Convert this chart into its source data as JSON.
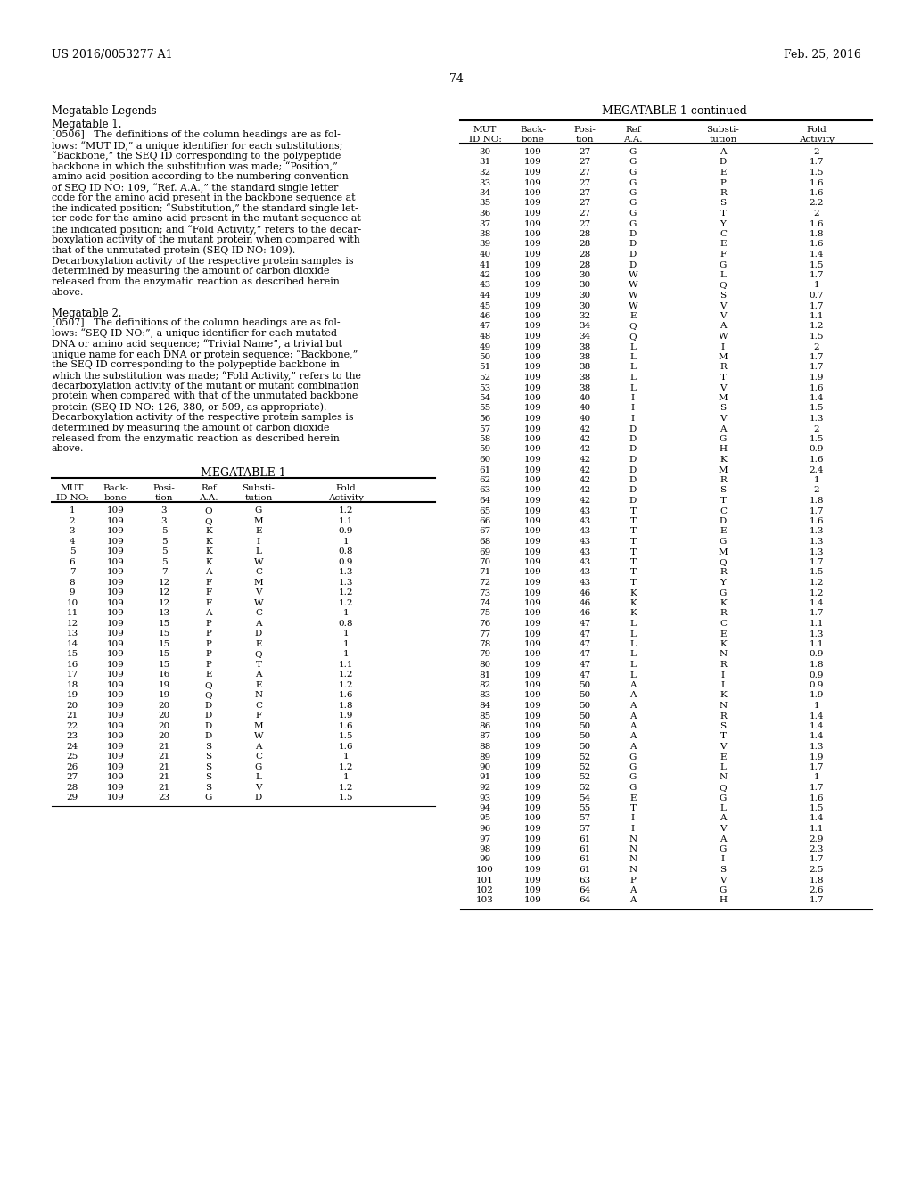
{
  "header_left": "US 2016/0053277 A1",
  "header_right": "Feb. 25, 2016",
  "page_number": "74",
  "table1_headers": [
    "MUT\nID NO:",
    "Back-\nbone",
    "Posi-\ntion",
    "Ref\nA.A.",
    "Substi-\ntution",
    "Fold\nActivity"
  ],
  "table1_data": [
    [
      1,
      109,
      3,
      "Q",
      "G",
      "1.2"
    ],
    [
      2,
      109,
      3,
      "Q",
      "M",
      "1.1"
    ],
    [
      3,
      109,
      5,
      "K",
      "E",
      "0.9"
    ],
    [
      4,
      109,
      5,
      "K",
      "I",
      "1"
    ],
    [
      5,
      109,
      5,
      "K",
      "L",
      "0.8"
    ],
    [
      6,
      109,
      5,
      "K",
      "W",
      "0.9"
    ],
    [
      7,
      109,
      7,
      "A",
      "C",
      "1.3"
    ],
    [
      8,
      109,
      12,
      "F",
      "M",
      "1.3"
    ],
    [
      9,
      109,
      12,
      "F",
      "V",
      "1.2"
    ],
    [
      10,
      109,
      12,
      "F",
      "W",
      "1.2"
    ],
    [
      11,
      109,
      13,
      "A",
      "C",
      "1"
    ],
    [
      12,
      109,
      15,
      "P",
      "A",
      "0.8"
    ],
    [
      13,
      109,
      15,
      "P",
      "D",
      "1"
    ],
    [
      14,
      109,
      15,
      "P",
      "E",
      "1"
    ],
    [
      15,
      109,
      15,
      "P",
      "Q",
      "1"
    ],
    [
      16,
      109,
      15,
      "P",
      "T",
      "1.1"
    ],
    [
      17,
      109,
      16,
      "E",
      "A",
      "1.2"
    ],
    [
      18,
      109,
      19,
      "Q",
      "E",
      "1.2"
    ],
    [
      19,
      109,
      19,
      "Q",
      "N",
      "1.6"
    ],
    [
      20,
      109,
      20,
      "D",
      "C",
      "1.8"
    ],
    [
      21,
      109,
      20,
      "D",
      "F",
      "1.9"
    ],
    [
      22,
      109,
      20,
      "D",
      "M",
      "1.6"
    ],
    [
      23,
      109,
      20,
      "D",
      "W",
      "1.5"
    ],
    [
      24,
      109,
      21,
      "S",
      "A",
      "1.6"
    ],
    [
      25,
      109,
      21,
      "S",
      "C",
      "1"
    ],
    [
      26,
      109,
      21,
      "S",
      "G",
      "1.2"
    ],
    [
      27,
      109,
      21,
      "S",
      "L",
      "1"
    ],
    [
      28,
      109,
      21,
      "S",
      "V",
      "1.2"
    ],
    [
      29,
      109,
      23,
      "G",
      "D",
      "1.5"
    ]
  ],
  "table2_data": [
    [
      30,
      109,
      27,
      "G",
      "A",
      "2"
    ],
    [
      31,
      109,
      27,
      "G",
      "D",
      "1.7"
    ],
    [
      32,
      109,
      27,
      "G",
      "E",
      "1.5"
    ],
    [
      33,
      109,
      27,
      "G",
      "P",
      "1.6"
    ],
    [
      34,
      109,
      27,
      "G",
      "R",
      "1.6"
    ],
    [
      35,
      109,
      27,
      "G",
      "S",
      "2.2"
    ],
    [
      36,
      109,
      27,
      "G",
      "T",
      "2"
    ],
    [
      37,
      109,
      27,
      "G",
      "Y",
      "1.6"
    ],
    [
      38,
      109,
      28,
      "D",
      "C",
      "1.8"
    ],
    [
      39,
      109,
      28,
      "D",
      "E",
      "1.6"
    ],
    [
      40,
      109,
      28,
      "D",
      "F",
      "1.4"
    ],
    [
      41,
      109,
      28,
      "D",
      "G",
      "1.5"
    ],
    [
      42,
      109,
      30,
      "W",
      "L",
      "1.7"
    ],
    [
      43,
      109,
      30,
      "W",
      "Q",
      "1"
    ],
    [
      44,
      109,
      30,
      "W",
      "S",
      "0.7"
    ],
    [
      45,
      109,
      30,
      "W",
      "V",
      "1.7"
    ],
    [
      46,
      109,
      32,
      "E",
      "V",
      "1.1"
    ],
    [
      47,
      109,
      34,
      "Q",
      "A",
      "1.2"
    ],
    [
      48,
      109,
      34,
      "Q",
      "W",
      "1.5"
    ],
    [
      49,
      109,
      38,
      "L",
      "I",
      "2"
    ],
    [
      50,
      109,
      38,
      "L",
      "M",
      "1.7"
    ],
    [
      51,
      109,
      38,
      "L",
      "R",
      "1.7"
    ],
    [
      52,
      109,
      38,
      "L",
      "T",
      "1.9"
    ],
    [
      53,
      109,
      38,
      "L",
      "V",
      "1.6"
    ],
    [
      54,
      109,
      40,
      "I",
      "M",
      "1.4"
    ],
    [
      55,
      109,
      40,
      "I",
      "S",
      "1.5"
    ],
    [
      56,
      109,
      40,
      "I",
      "V",
      "1.3"
    ],
    [
      57,
      109,
      42,
      "D",
      "A",
      "2"
    ],
    [
      58,
      109,
      42,
      "D",
      "G",
      "1.5"
    ],
    [
      59,
      109,
      42,
      "D",
      "H",
      "0.9"
    ],
    [
      60,
      109,
      42,
      "D",
      "K",
      "1.6"
    ],
    [
      61,
      109,
      42,
      "D",
      "M",
      "2.4"
    ],
    [
      62,
      109,
      42,
      "D",
      "R",
      "1"
    ],
    [
      63,
      109,
      42,
      "D",
      "S",
      "2"
    ],
    [
      64,
      109,
      42,
      "D",
      "T",
      "1.8"
    ],
    [
      65,
      109,
      43,
      "T",
      "C",
      "1.7"
    ],
    [
      66,
      109,
      43,
      "T",
      "D",
      "1.6"
    ],
    [
      67,
      109,
      43,
      "T",
      "E",
      "1.3"
    ],
    [
      68,
      109,
      43,
      "T",
      "G",
      "1.3"
    ],
    [
      69,
      109,
      43,
      "T",
      "M",
      "1.3"
    ],
    [
      70,
      109,
      43,
      "T",
      "Q",
      "1.7"
    ],
    [
      71,
      109,
      43,
      "T",
      "R",
      "1.5"
    ],
    [
      72,
      109,
      43,
      "T",
      "Y",
      "1.2"
    ],
    [
      73,
      109,
      46,
      "K",
      "G",
      "1.2"
    ],
    [
      74,
      109,
      46,
      "K",
      "K",
      "1.4"
    ],
    [
      75,
      109,
      46,
      "K",
      "R",
      "1.7"
    ],
    [
      76,
      109,
      47,
      "L",
      "C",
      "1.1"
    ],
    [
      77,
      109,
      47,
      "L",
      "E",
      "1.3"
    ],
    [
      78,
      109,
      47,
      "L",
      "K",
      "1.1"
    ],
    [
      79,
      109,
      47,
      "L",
      "N",
      "0.9"
    ],
    [
      80,
      109,
      47,
      "L",
      "R",
      "1.8"
    ],
    [
      81,
      109,
      47,
      "L",
      "I",
      "0.9"
    ],
    [
      82,
      109,
      50,
      "A",
      "I",
      "0.9"
    ],
    [
      83,
      109,
      50,
      "A",
      "K",
      "1.9"
    ],
    [
      84,
      109,
      50,
      "A",
      "N",
      "1"
    ],
    [
      85,
      109,
      50,
      "A",
      "R",
      "1.4"
    ],
    [
      86,
      109,
      50,
      "A",
      "S",
      "1.4"
    ],
    [
      87,
      109,
      50,
      "A",
      "T",
      "1.4"
    ],
    [
      88,
      109,
      50,
      "A",
      "V",
      "1.3"
    ],
    [
      89,
      109,
      52,
      "G",
      "E",
      "1.9"
    ],
    [
      90,
      109,
      52,
      "G",
      "L",
      "1.7"
    ],
    [
      91,
      109,
      52,
      "G",
      "N",
      "1"
    ],
    [
      92,
      109,
      52,
      "G",
      "Q",
      "1.7"
    ],
    [
      93,
      109,
      54,
      "E",
      "G",
      "1.6"
    ],
    [
      94,
      109,
      55,
      "T",
      "L",
      "1.5"
    ],
    [
      95,
      109,
      57,
      "I",
      "A",
      "1.4"
    ],
    [
      96,
      109,
      57,
      "I",
      "V",
      "1.1"
    ],
    [
      97,
      109,
      61,
      "N",
      "A",
      "2.9"
    ],
    [
      98,
      109,
      61,
      "N",
      "G",
      "2.3"
    ],
    [
      99,
      109,
      61,
      "N",
      "I",
      "1.7"
    ],
    [
      100,
      109,
      61,
      "N",
      "S",
      "2.5"
    ],
    [
      101,
      109,
      63,
      "P",
      "V",
      "1.8"
    ],
    [
      102,
      109,
      64,
      "A",
      "G",
      "2.6"
    ],
    [
      103,
      109,
      64,
      "A",
      "H",
      "1.7"
    ]
  ],
  "bg_color": "#ffffff"
}
